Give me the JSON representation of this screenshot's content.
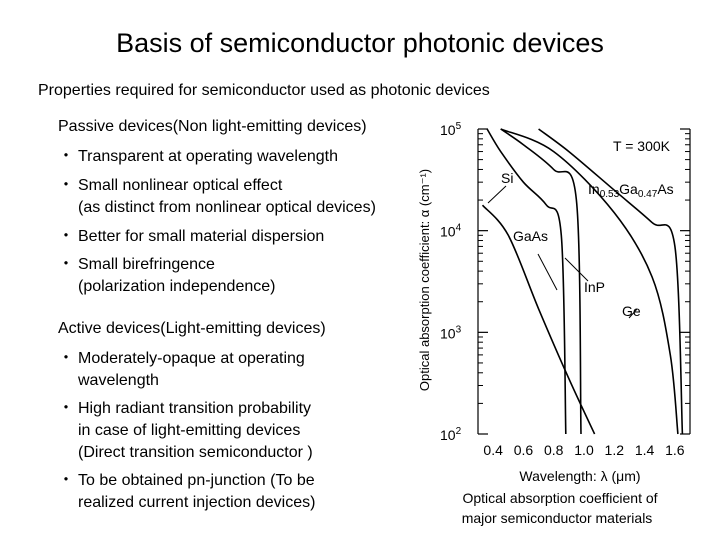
{
  "slide": {
    "title": "Basis of semiconductor photonic devices",
    "subtitle": "Properties required for semiconductor used as photonic devices"
  },
  "passive": {
    "heading": "Passive devices(Non light-emitting devices)",
    "items": [
      {
        "marker": "・",
        "lines": [
          "Transparent at operating wavelength"
        ]
      },
      {
        "marker": "・",
        "lines": [
          "Small nonlinear optical effect",
          "(as distinct from nonlinear optical devices)"
        ]
      },
      {
        "marker": "・",
        "lines": [
          "Better for small material dispersion"
        ]
      },
      {
        "marker": "・",
        "lines": [
          "Small birefringence",
          "(polarization independence)"
        ]
      }
    ]
  },
  "active": {
    "heading": "Active devices(Light-emitting devices)",
    "items": [
      {
        "marker": "・",
        "lines": [
          "Moderately-opaque at operating",
          "wavelength"
        ]
      },
      {
        "marker": "・",
        "lines": [
          "High radiant transition probability",
          "in case of light-emitting devices",
          "(Direct transition semiconductor )"
        ]
      },
      {
        "marker": "・",
        "lines": [
          "To be obtained pn-junction (To be",
          "realized current injection devices)"
        ]
      }
    ]
  },
  "chart_data": {
    "type": "line",
    "annotation": "T = 300K",
    "ylabel": "Optical absorption coefficient: α (cm⁻¹)",
    "xlabel": "Wavelength: λ (μm)",
    "caption_lines": [
      "Optical absorption coefficient of",
      "major semiconductor materials"
    ],
    "y_scale": "log",
    "xlim": [
      0.3,
      1.7
    ],
    "ylim": [
      100,
      100000
    ],
    "x_ticks": [
      0.4,
      0.6,
      0.8,
      1.0,
      1.2,
      1.4,
      1.6
    ],
    "x_tick_labels": [
      "0.4",
      "0.6",
      "0.8",
      "1.0",
      "1.2",
      "1.4",
      "1.6"
    ],
    "y_ticks": [
      {
        "value": 100,
        "base": "10",
        "exp": "2"
      },
      {
        "value": 1000,
        "base": "10",
        "exp": "3"
      },
      {
        "value": 10000,
        "base": "10",
        "exp": "4"
      },
      {
        "value": 100000,
        "base": "10",
        "exp": "5"
      }
    ],
    "grid": false,
    "series": [
      {
        "name": "Si",
        "label_parts": [
          {
            "t": "Si"
          }
        ],
        "points": [
          [
            0.33,
            17800
          ],
          [
            0.5,
            9000
          ],
          [
            0.7,
            1700
          ],
          [
            0.9,
            350
          ],
          [
            1.07,
            100
          ]
        ]
      },
      {
        "name": "GaAs",
        "label_parts": [
          {
            "t": "GaAs"
          }
        ],
        "points": [
          [
            0.36,
            100000
          ],
          [
            0.45,
            60000
          ],
          [
            0.6,
            30000
          ],
          [
            0.75,
            18000
          ],
          [
            0.85,
            9000
          ],
          [
            0.88,
            100
          ]
        ]
      },
      {
        "name": "In0.53Ga0.47As",
        "label_parts": [
          {
            "t": "In"
          },
          {
            "t": "0.53",
            "sub": true
          },
          {
            "t": "Ga"
          },
          {
            "t": "0.47",
            "sub": true
          },
          {
            "t": "As"
          }
        ],
        "points": [
          [
            0.7,
            100000
          ],
          [
            0.9,
            60000
          ],
          [
            1.2,
            25000
          ],
          [
            1.45,
            12000
          ],
          [
            1.6,
            7000
          ],
          [
            1.65,
            100
          ]
        ]
      },
      {
        "name": "InP",
        "label_parts": [
          {
            "t": "InP"
          }
        ],
        "points": [
          [
            0.45,
            100000
          ],
          [
            0.6,
            70000
          ],
          [
            0.8,
            40000
          ],
          [
            0.95,
            20000
          ],
          [
            0.98,
            100
          ]
        ]
      },
      {
        "name": "Ge",
        "label_parts": [
          {
            "t": "Ge"
          }
        ],
        "points": [
          [
            0.45,
            100000
          ],
          [
            0.8,
            60000
          ],
          [
            1.2,
            15000
          ],
          [
            1.45,
            3500
          ],
          [
            1.57,
            600
          ],
          [
            1.62,
            100
          ]
        ]
      }
    ]
  }
}
